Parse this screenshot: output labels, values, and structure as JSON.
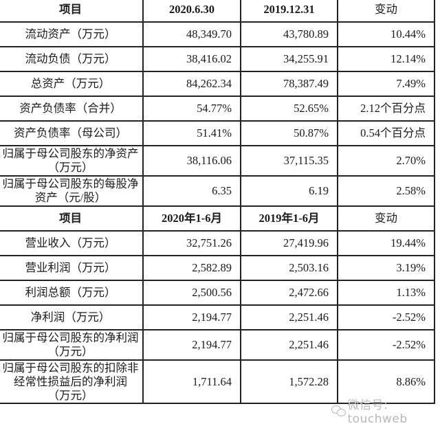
{
  "balance_sheet": {
    "headers": [
      "项目",
      "2020.6.30",
      "2019.12.31",
      "变动"
    ],
    "rows": [
      {
        "label": "流动资产（万元）",
        "v1": "48,349.70",
        "v2": "43,780.89",
        "change": "10.44%"
      },
      {
        "label": "流动负债（万元）",
        "v1": "38,416.02",
        "v2": "34,255.91",
        "change": "12.14%"
      },
      {
        "label": "总资产（万元）",
        "v1": "84,262.34",
        "v2": "78,387.49",
        "change": "7.49%"
      },
      {
        "label": "资产负债率（合并）",
        "v1": "54.77%",
        "v2": "52.65%",
        "change": "2.12个百分点"
      },
      {
        "label": "资产负债率（母公司）",
        "v1": "51.41%",
        "v2": "50.87%",
        "change": "0.54个百分点"
      },
      {
        "label_line1": "归属于母公司股东的净资产",
        "label_line2": "（万元）",
        "v1": "38,116.06",
        "v2": "37,115.35",
        "change": "2.70%"
      },
      {
        "label_line1": "归属于母公司股东的每股净",
        "label_line2": "资产（元/股）",
        "v1": "6.35",
        "v2": "6.19",
        "change": "2.58%"
      }
    ]
  },
  "income_statement": {
    "headers": [
      "项目",
      "2020年1-6月",
      "2019年1-6月",
      "变动"
    ],
    "rows": [
      {
        "label": "营业收入（万元）",
        "v1": "32,751.26",
        "v2": "27,419.96",
        "change": "19.44%"
      },
      {
        "label": "营业利润（万元）",
        "v1": "2,582.89",
        "v2": "2,503.16",
        "change": "3.19%"
      },
      {
        "label": "利润总额（万元）",
        "v1": "2,500.56",
        "v2": "2,472.66",
        "change": "1.13%"
      },
      {
        "label": "净利润（万元）",
        "v1": "2,194.77",
        "v2": "2,251.46",
        "change": "-2.52%"
      },
      {
        "label_line1": "归属于母公司股东的净利润",
        "label_line2": "（万元）",
        "v1": "2,194.77",
        "v2": "2,251.46",
        "change": "-2.52%"
      },
      {
        "label_line1": "归属于母公司股东的扣除非",
        "label_line2": "经常性损益后的净利润",
        "label_line3": "（万元）",
        "v1": "1,711.64",
        "v2": "1,572.28",
        "change": "8.86%"
      }
    ]
  },
  "watermark": {
    "icon": "wechat-icon",
    "text": "微信号: touchweb"
  }
}
